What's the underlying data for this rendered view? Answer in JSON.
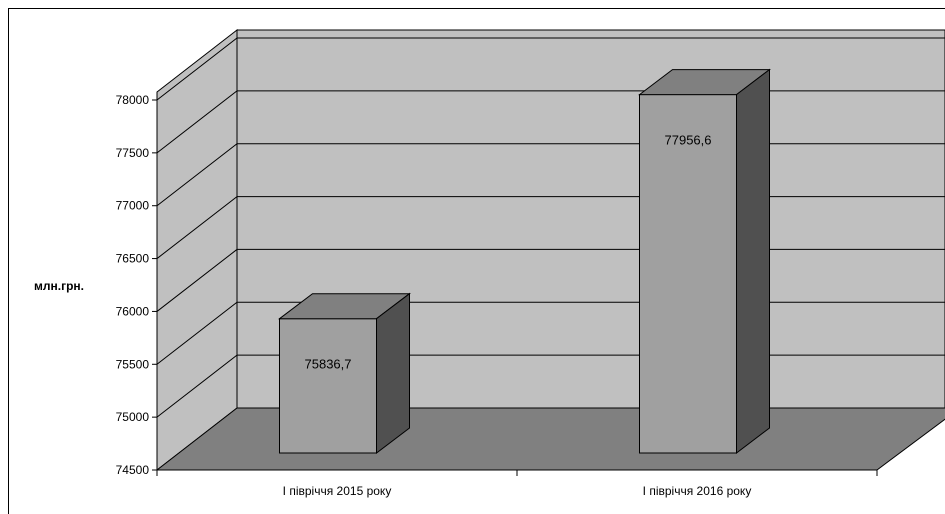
{
  "chart_data": {
    "type": "bar",
    "categories": [
      "I півріччя 2015 року",
      "I півріччя 2016 року"
    ],
    "series": [
      {
        "values": [
          75836.7,
          77956.6
        ]
      }
    ],
    "data_labels": [
      "75836,7",
      "77956,6"
    ],
    "ylabel": "млн.грн.",
    "ylim": [
      74500,
      78000
    ],
    "yticks": [
      74500,
      75000,
      75500,
      76000,
      76500,
      77000,
      77500,
      78000
    ],
    "grid": true,
    "legend": "none",
    "style": "3d-column",
    "colors": {
      "wall": "#c0c0c0",
      "floor": "#808080",
      "bar_front": "#a0a0a0",
      "bar_top": "#808080",
      "bar_side": "#505050"
    }
  }
}
